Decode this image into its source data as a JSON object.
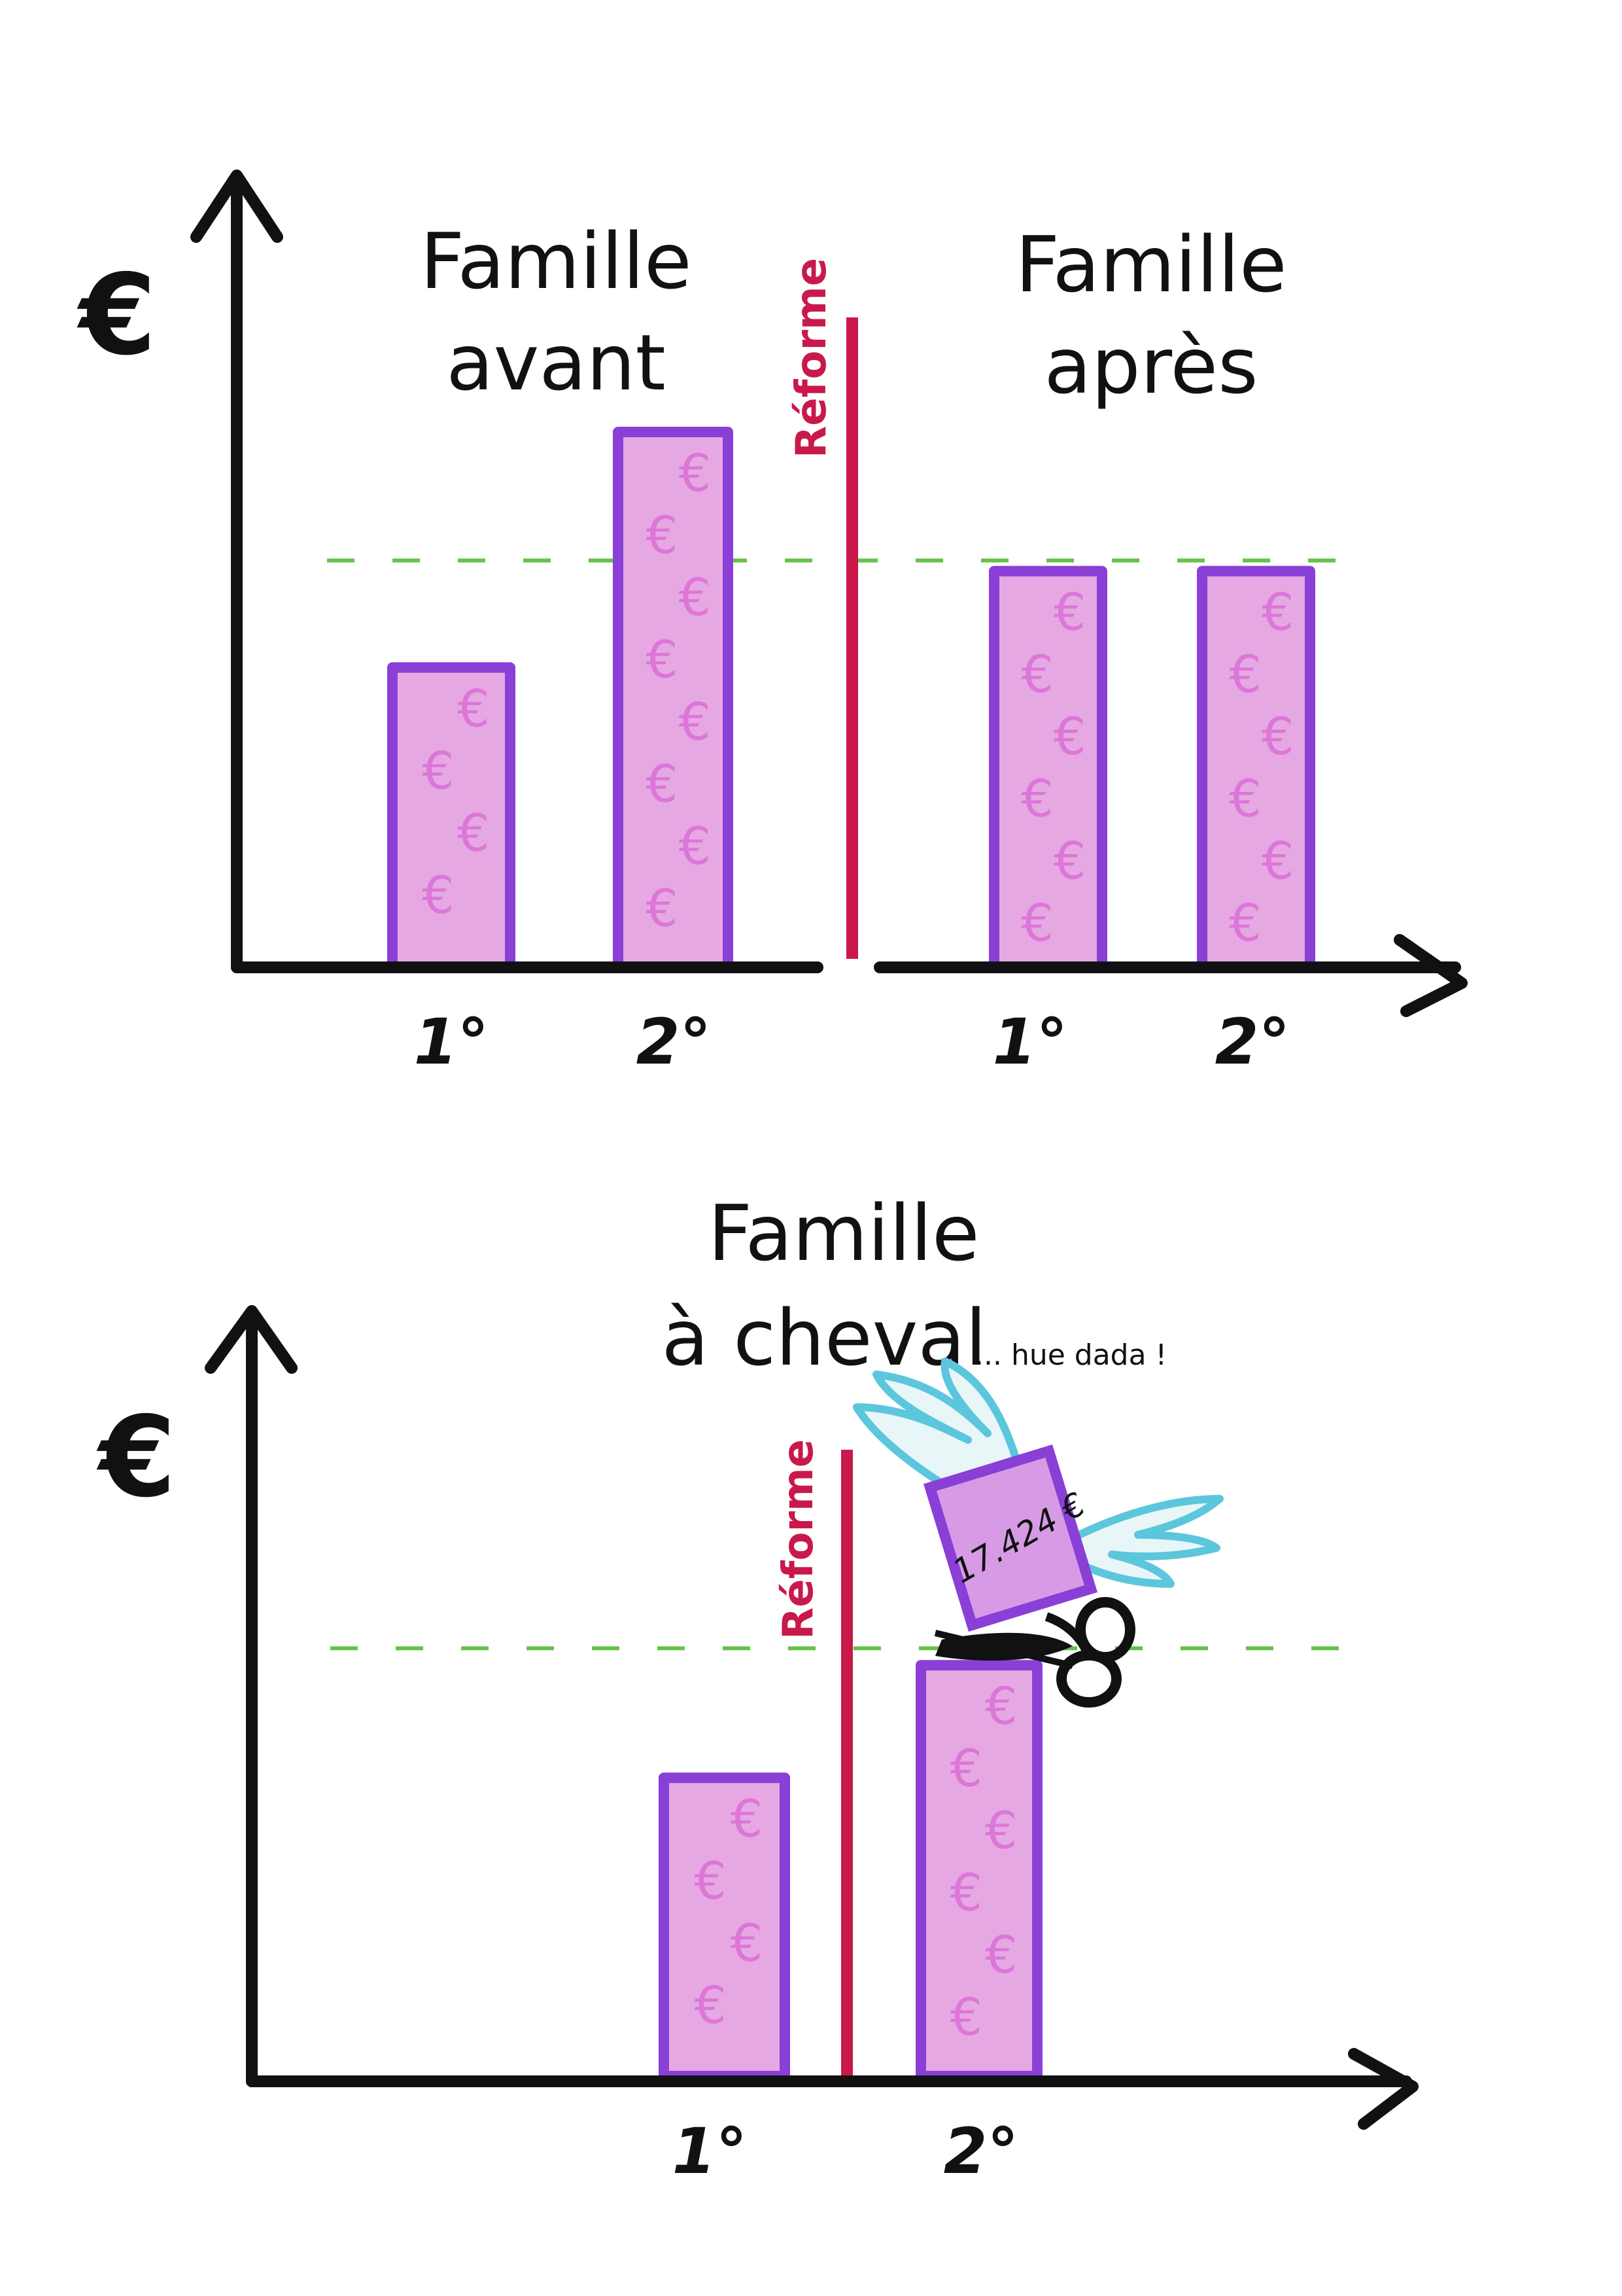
{
  "colors": {
    "bar_fill": "#e6a8e3",
    "bar_edge": "#8a3fd6",
    "euro_pattern": "#d44ed0",
    "threshold": "#66c24a",
    "reform": "#c8194a",
    "axis": "#111111",
    "wings": "#5cc6dc"
  },
  "chart_data": [
    {
      "type": "bar",
      "y_axis_label": "€",
      "reform_label": "Réforme",
      "threshold_line": {
        "style": "dashed",
        "value": 76
      },
      "ylim": [
        0,
        100
      ],
      "grid": false,
      "groups": [
        {
          "name": "Famille avant",
          "title_lines": [
            "Famille",
            "avant"
          ],
          "categories": [
            "1°",
            "2°"
          ],
          "values": [
            56,
            100
          ]
        },
        {
          "name": "Famille après",
          "title_lines": [
            "Famille",
            "après"
          ],
          "categories": [
            "1°",
            "2°"
          ],
          "values": [
            74,
            74
          ]
        }
      ]
    },
    {
      "type": "bar",
      "y_axis_label": "€",
      "reform_label": "Réforme",
      "threshold_line": {
        "style": "dashed",
        "value": 76
      },
      "ylim": [
        0,
        100
      ],
      "grid": false,
      "title_lines": [
        "Famille",
        "à cheval"
      ],
      "subtitle_note": "... hue dada !",
      "categories": [
        "1°",
        "2°"
      ],
      "values": [
        53,
        73
      ],
      "annotation": {
        "amount": "17.424 €",
        "icons": [
          "winged-banknote-icon",
          "scissors-icon"
        ]
      }
    }
  ]
}
